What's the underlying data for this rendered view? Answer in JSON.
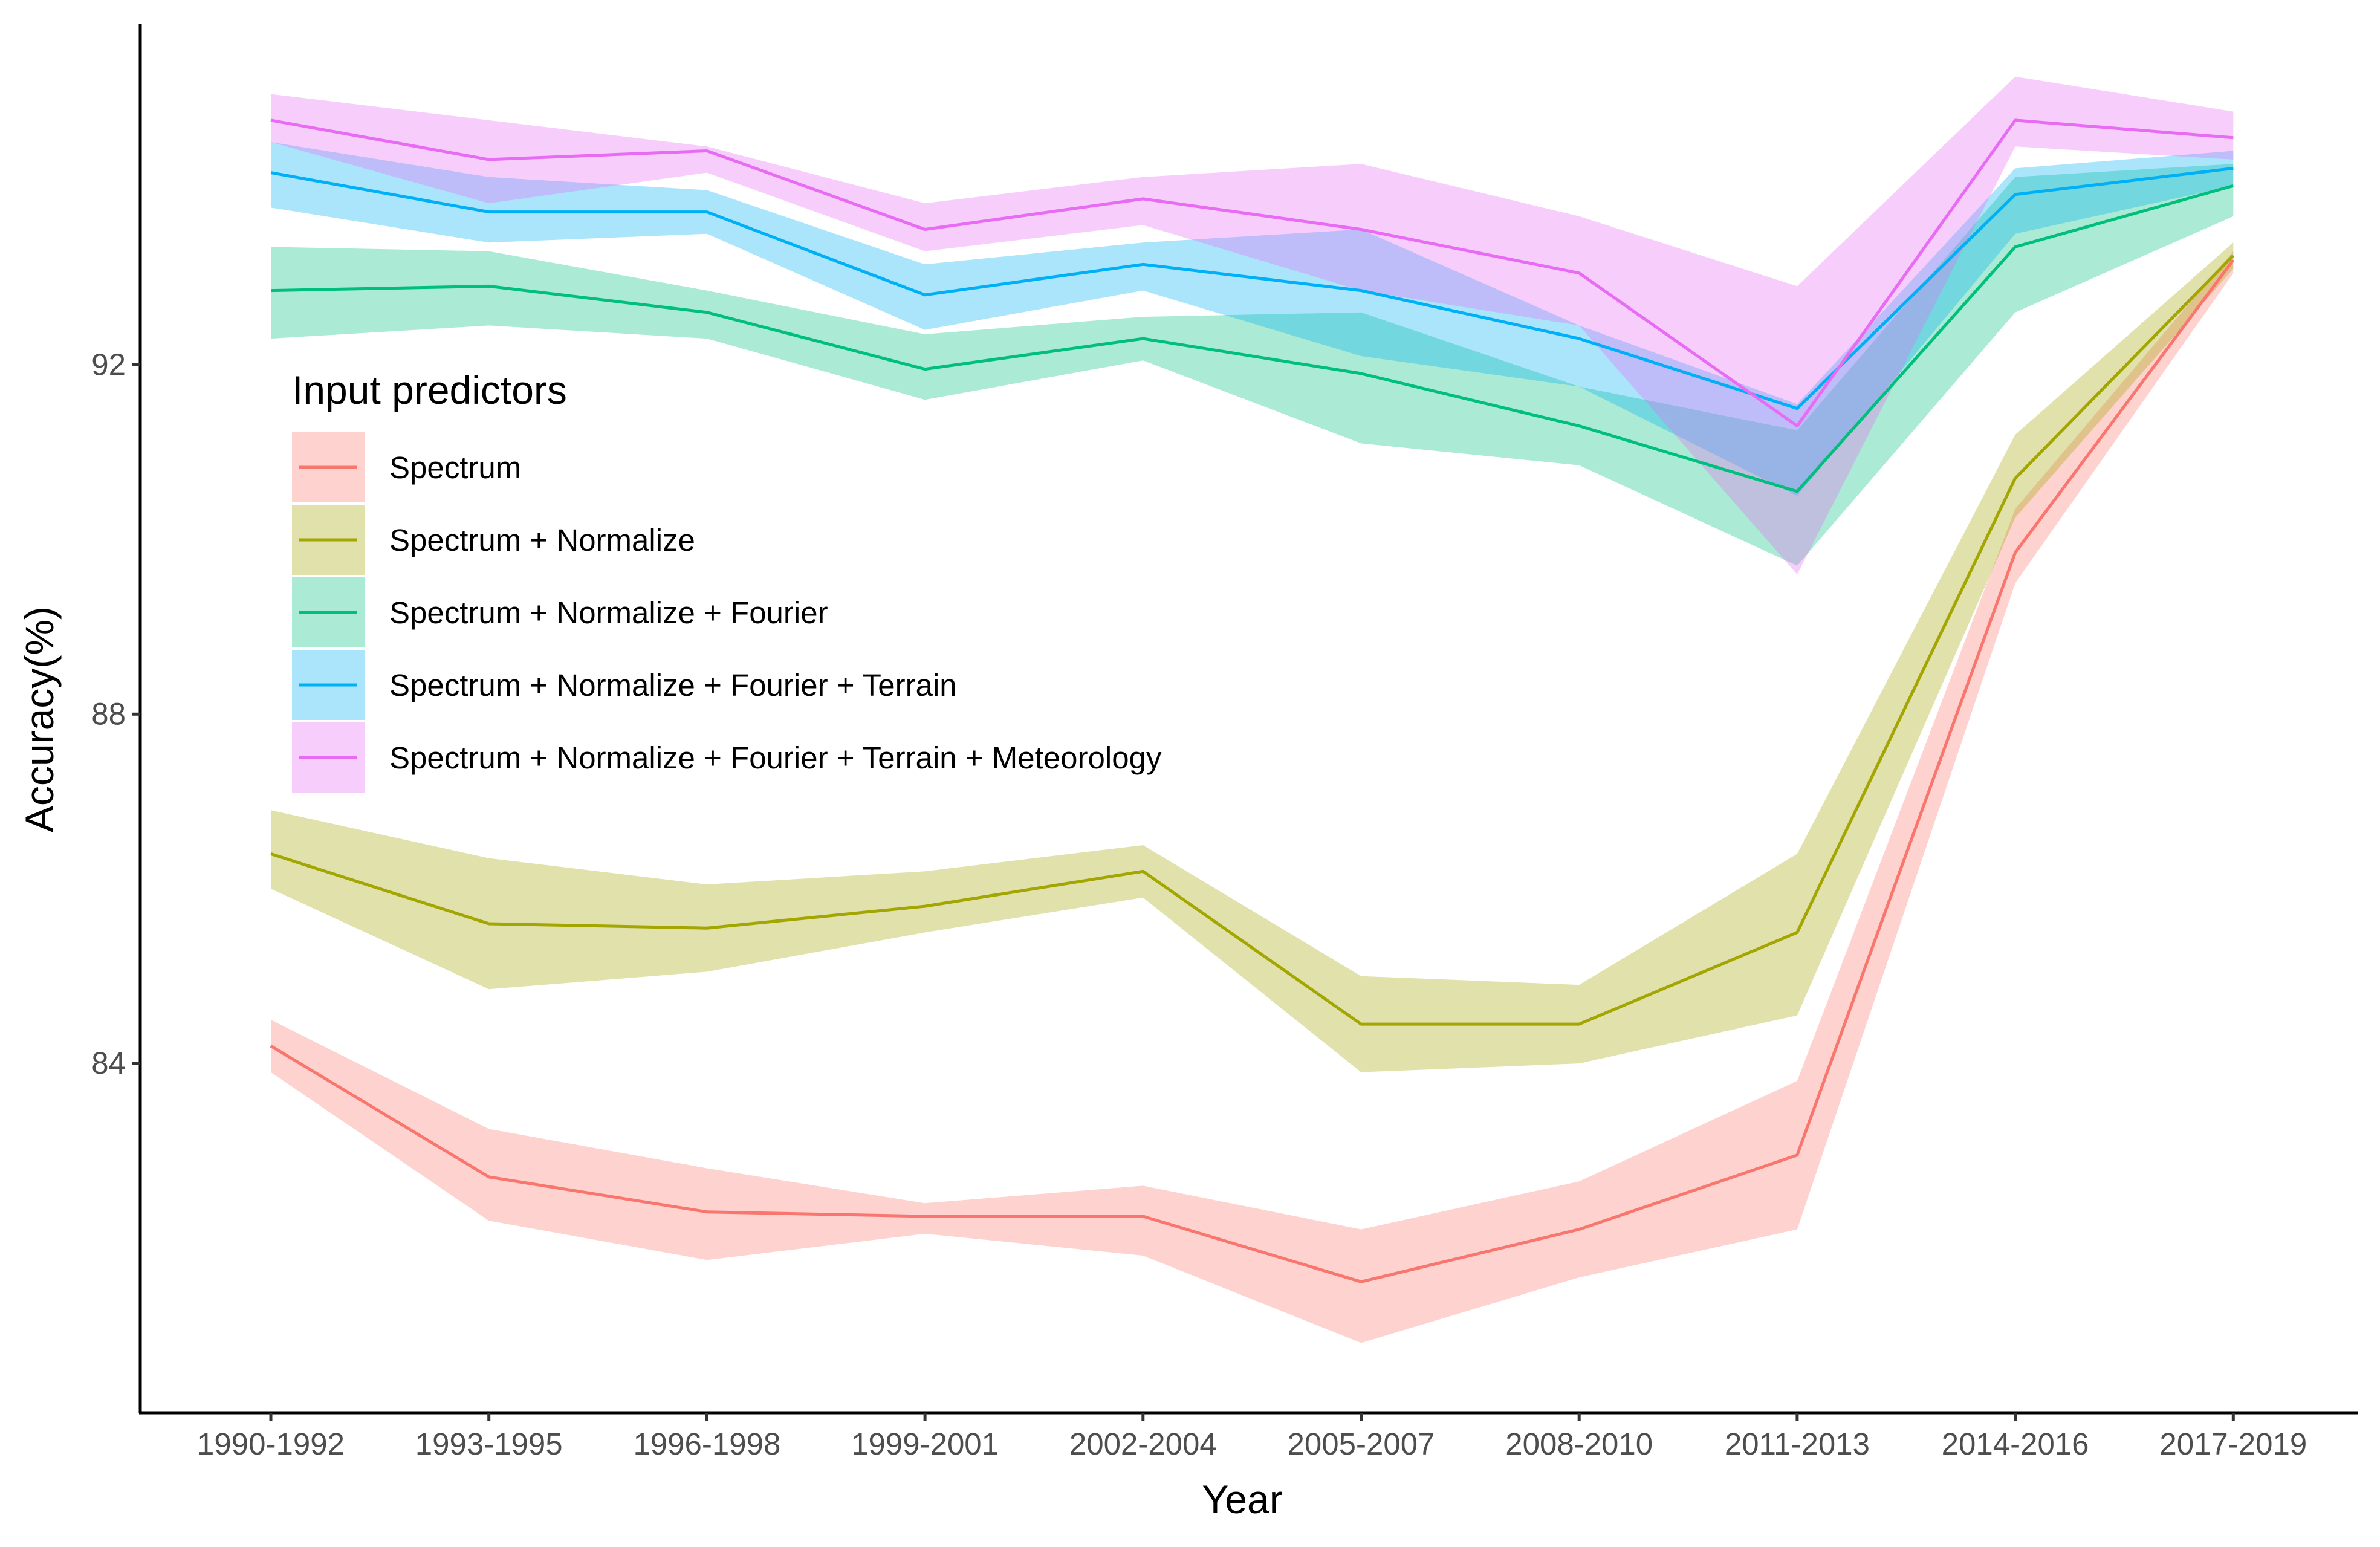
{
  "chart_data": {
    "type": "line",
    "title": "",
    "xlabel": "Year",
    "ylabel": "Accuracy(%)",
    "categories": [
      "1990-1992",
      "1993-1995",
      "1996-1998",
      "1999-2001",
      "2002-2004",
      "2005-2007",
      "2008-2010",
      "2011-2013",
      "2014-2016",
      "2017-2019"
    ],
    "ylim": [
      80,
      95.9
    ],
    "yticks": [
      84,
      88,
      92
    ],
    "grid": false,
    "legend": {
      "title": "Input predictors",
      "position": "inside-left"
    },
    "series": [
      {
        "name": "Spectrum",
        "color": "#F8766D",
        "values": [
          84.2,
          82.7,
          82.3,
          82.25,
          82.25,
          81.5,
          82.1,
          82.95,
          89.85,
          93.2
        ],
        "lower": [
          83.9,
          82.2,
          81.75,
          82.05,
          81.8,
          80.8,
          81.55,
          82.1,
          89.5,
          93.05
        ],
        "upper": [
          84.5,
          83.25,
          82.8,
          82.4,
          82.6,
          82.1,
          82.65,
          83.8,
          90.35,
          93.3
        ]
      },
      {
        "name": "Spectrum + Normalize",
        "color": "#A3A500",
        "values": [
          86.4,
          85.6,
          85.55,
          85.8,
          86.2,
          84.45,
          84.45,
          85.5,
          90.7,
          93.25
        ],
        "lower": [
          86.0,
          84.85,
          85.05,
          85.5,
          85.9,
          83.9,
          84.0,
          84.55,
          90.25,
          93.1
        ],
        "upper": [
          86.9,
          86.35,
          86.05,
          86.2,
          86.5,
          85.0,
          84.9,
          86.4,
          91.2,
          93.4
        ]
      },
      {
        "name": "Spectrum + Normalize + Fourier",
        "color": "#00BF7D",
        "values": [
          92.85,
          92.9,
          92.6,
          91.95,
          92.3,
          91.9,
          91.3,
          90.55,
          93.35,
          94.05
        ],
        "lower": [
          92.3,
          92.45,
          92.3,
          91.6,
          92.05,
          91.1,
          90.85,
          89.7,
          92.6,
          93.7
        ],
        "upper": [
          93.35,
          93.3,
          92.85,
          92.35,
          92.55,
          92.6,
          91.75,
          91.25,
          94.15,
          94.3
        ]
      },
      {
        "name": "Spectrum + Normalize + Fourier + Terrain",
        "color": "#00B0F6",
        "values": [
          94.2,
          93.75,
          93.75,
          92.8,
          93.15,
          92.85,
          92.3,
          91.5,
          93.95,
          94.25
        ],
        "lower": [
          93.8,
          93.4,
          93.5,
          92.4,
          92.85,
          92.1,
          91.75,
          90.5,
          93.5,
          94.05
        ],
        "upper": [
          94.55,
          94.15,
          94.0,
          93.15,
          93.4,
          93.55,
          92.45,
          91.55,
          94.25,
          94.45
        ]
      },
      {
        "name": "Spectrum + Normalize + Fourier + Terrain + Meteorology",
        "color": "#E76BF3",
        "values": [
          94.8,
          94.35,
          94.45,
          93.55,
          93.9,
          93.55,
          93.05,
          91.3,
          94.8,
          94.6
        ],
        "lower": [
          94.55,
          93.85,
          94.2,
          93.3,
          93.6,
          92.85,
          92.45,
          89.6,
          94.5,
          94.35
        ],
        "upper": [
          95.1,
          94.8,
          94.5,
          93.85,
          94.15,
          94.3,
          93.7,
          92.9,
          95.3,
          94.9
        ]
      }
    ]
  }
}
